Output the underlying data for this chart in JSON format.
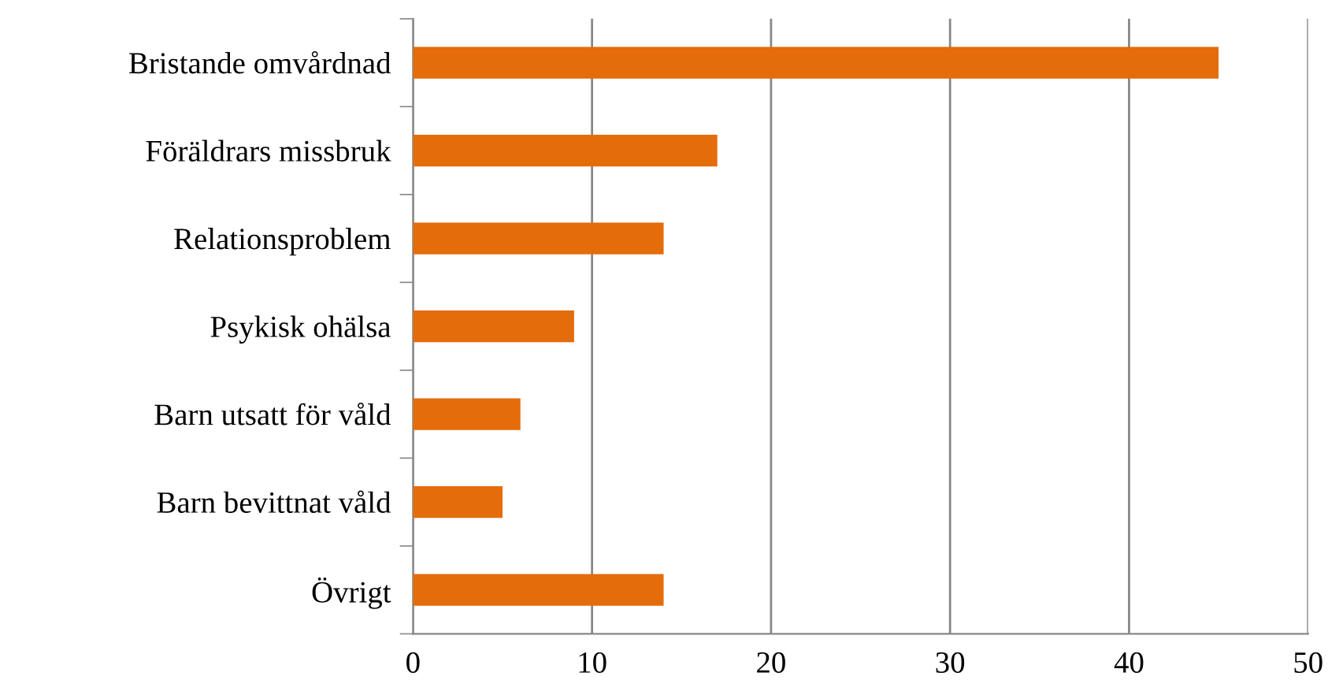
{
  "chart_data": {
    "type": "bar",
    "orientation": "horizontal",
    "categories": [
      "Bristande omvårdnad",
      "Föräldrars missbruk",
      "Relationsproblem",
      "Psykisk ohälsa",
      "Barn utsatt för våld",
      "Barn bevittnat våld",
      "Övrigt"
    ],
    "values": [
      45,
      17,
      14,
      9,
      6,
      5,
      14
    ],
    "color": "#e46c0a",
    "xlim": [
      0,
      50
    ],
    "xticks": [
      0,
      10,
      20,
      30,
      40,
      50
    ],
    "grid": "x",
    "legend": false
  }
}
